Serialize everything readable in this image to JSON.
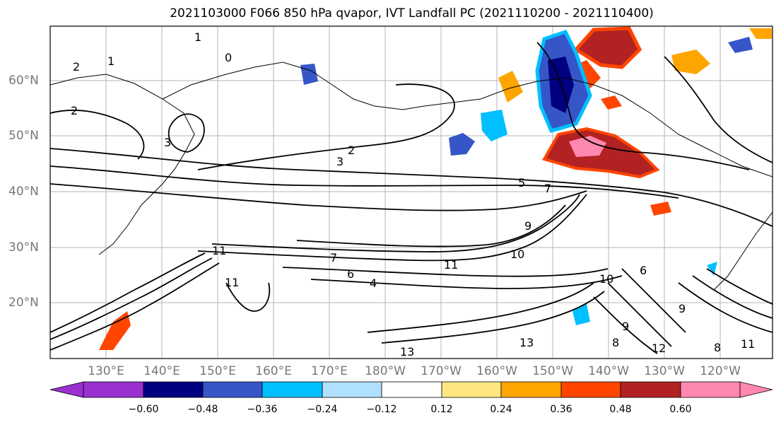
{
  "title": "2021103000 F066 850 hPa qvapor, IVT Landfall PC (2021110200 - 2021110400)",
  "lat_labels": [
    "60°N",
    "50°N",
    "40°N",
    "30°N",
    "20°N"
  ],
  "lon_labels": [
    "130°E",
    "140°E",
    "150°E",
    "160°E",
    "170°E",
    "180°W",
    "170°W",
    "160°W",
    "150°W",
    "140°W",
    "130°W",
    "120°W"
  ],
  "colorbar": {
    "ticks": [
      "−0.60",
      "−0.48",
      "−0.36",
      "−0.24",
      "−0.12",
      "0.12",
      "0.24",
      "0.36",
      "0.48",
      "0.60"
    ],
    "colors": [
      "#9b30d0",
      "#000080",
      "#3656c8",
      "#00bfff",
      "#b0e0ff",
      "#ffffff",
      "#ffe680",
      "#ffa500",
      "#ff4500",
      "#b22222",
      "#ff88b0"
    ]
  },
  "contour_labels": [
    "1",
    "2",
    "1",
    "2",
    "0",
    "3",
    "2",
    "3",
    "5",
    "7",
    "9",
    "10",
    "11",
    "11",
    "11",
    "10",
    "13",
    "13",
    "12",
    "11",
    "9",
    "8",
    "8",
    "6",
    "4",
    "6",
    "7",
    "9"
  ]
}
